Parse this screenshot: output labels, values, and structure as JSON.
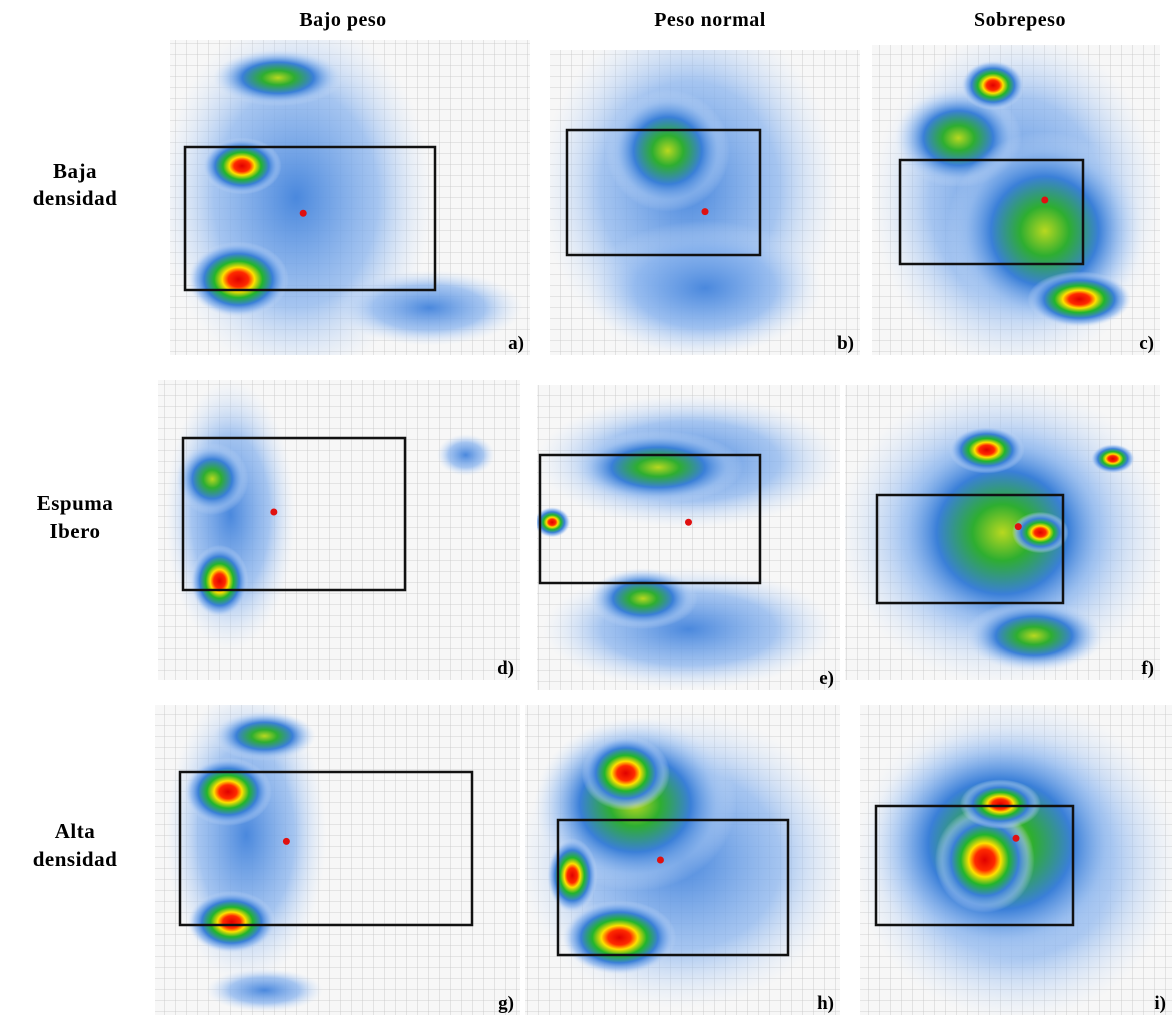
{
  "header": {
    "columns": [
      "Bajo peso",
      "Peso normal",
      "Sobrepeso"
    ]
  },
  "rows": [
    {
      "label": [
        "Baja",
        "densidad"
      ]
    },
    {
      "label": [
        "Espuma",
        "Ibero"
      ]
    },
    {
      "label": [
        "Alta",
        "densidad"
      ]
    }
  ],
  "panels": [
    "a)",
    "b)",
    "c)",
    "d)",
    "e)",
    "f)",
    "g)",
    "h)",
    "i)"
  ]
}
